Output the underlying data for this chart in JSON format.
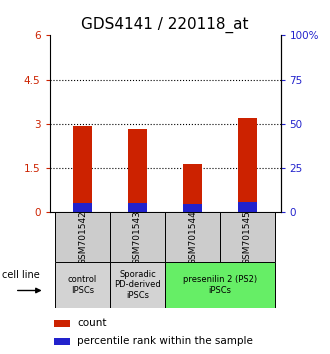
{
  "title": "GDS4141 / 220118_at",
  "samples": [
    "GSM701542",
    "GSM701543",
    "GSM701544",
    "GSM701545"
  ],
  "red_values": [
    2.93,
    2.82,
    1.65,
    3.2
  ],
  "blue_values_pct": [
    5.5,
    5.2,
    4.5,
    6.0
  ],
  "ylim_left": [
    0,
    6
  ],
  "ylim_right": [
    0,
    100
  ],
  "yticks_left": [
    0,
    1.5,
    3.0,
    4.5,
    6.0
  ],
  "yticks_right": [
    0,
    25,
    50,
    75,
    100
  ],
  "ytick_labels_left": [
    "0",
    "1.5",
    "3",
    "4.5",
    "6"
  ],
  "ytick_labels_right": [
    "0",
    "25",
    "50",
    "75",
    "100%"
  ],
  "hlines": [
    1.5,
    3.0,
    4.5
  ],
  "cell_line_label": "cell line",
  "legend_red": "count",
  "legend_blue": "percentile rank within the sample",
  "bar_width": 0.35,
  "red_color": "#cc2200",
  "blue_color": "#2222cc",
  "title_fontsize": 11,
  "left_tick_color": "#cc2200",
  "right_tick_color": "#2222cc",
  "group_info": [
    {
      "label": "control\nIPSCs",
      "color": "#d3d3d3",
      "xstart": -0.5,
      "xend": 0.5
    },
    {
      "label": "Sporadic\nPD-derived\niPSCs",
      "color": "#d3d3d3",
      "xstart": 0.5,
      "xend": 1.5
    },
    {
      "label": "presenilin 2 (PS2)\niPSCs",
      "color": "#66ee66",
      "xstart": 1.5,
      "xend": 3.5
    }
  ]
}
